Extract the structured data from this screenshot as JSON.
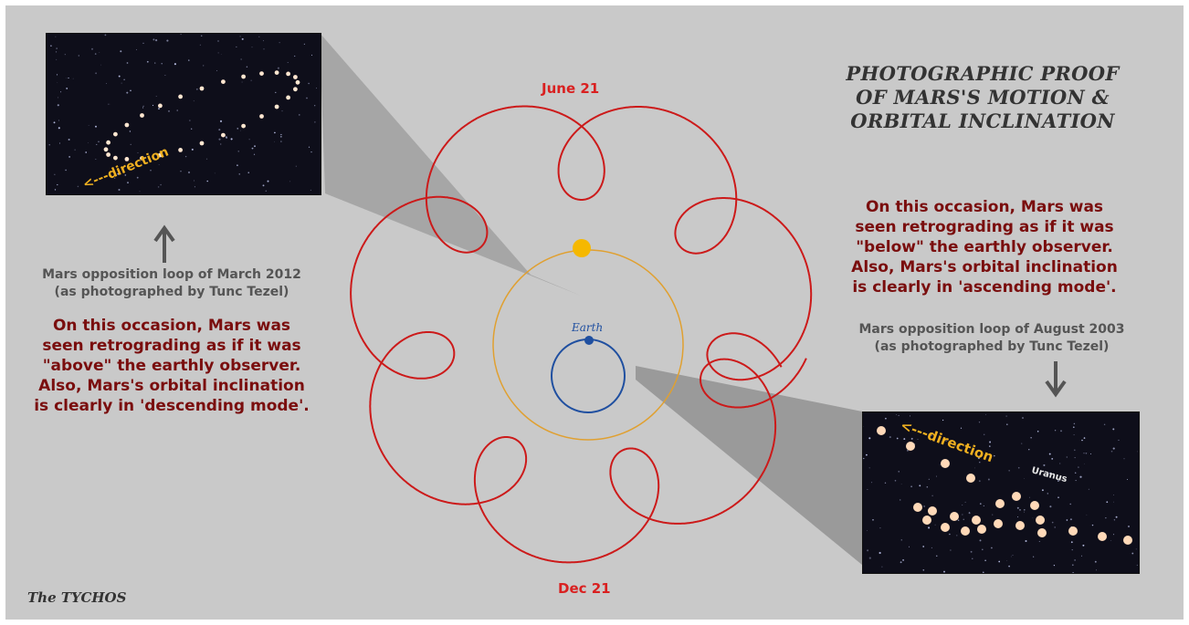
{
  "title": {
    "line1": "PHOTOGRAPHIC PROOF",
    "line2": "OF MARS'S MOTION &",
    "line3": "ORBITAL INCLINATION"
  },
  "labels": {
    "june": "June 21",
    "dec": "Dec 21",
    "earth": "Earth"
  },
  "left_caption": {
    "line1": "Mars opposition loop of March 2012",
    "line2": "(as photographed by Tunc Tezel)"
  },
  "left_desc": {
    "line1": "On this occasion, Mars was",
    "line2": "seen retrograding as if it was",
    "line3": "\"above\" the earthly observer.",
    "line4": "Also, Mars's orbital inclination",
    "line5": "is clearly in 'descending mode'."
  },
  "right_desc": {
    "line1": "On this occasion, Mars was",
    "line2": "seen retrograding as if it was",
    "line3": "\"below\" the earthly observer.",
    "line4": "Also, Mars's orbital inclination",
    "line5": "is clearly in 'ascending mode'."
  },
  "right_caption": {
    "line1": "Mars opposition loop of August 2003",
    "line2": "(as photographed by Tunc Tezel)"
  },
  "photo_left": {
    "direction": "<---direction"
  },
  "photo_right": {
    "direction": "<---direction",
    "planet": "Uranus"
  },
  "credit": "The TYCHOS",
  "colors": {
    "background": "#c9c9c9",
    "loops": "#cc1a1a",
    "sun_orbit": "#e0a030",
    "earth_orbit": "#1f4fa0",
    "sun": "#f5b800",
    "description_text": "#7a0e0e",
    "date_text": "#d92020"
  }
}
